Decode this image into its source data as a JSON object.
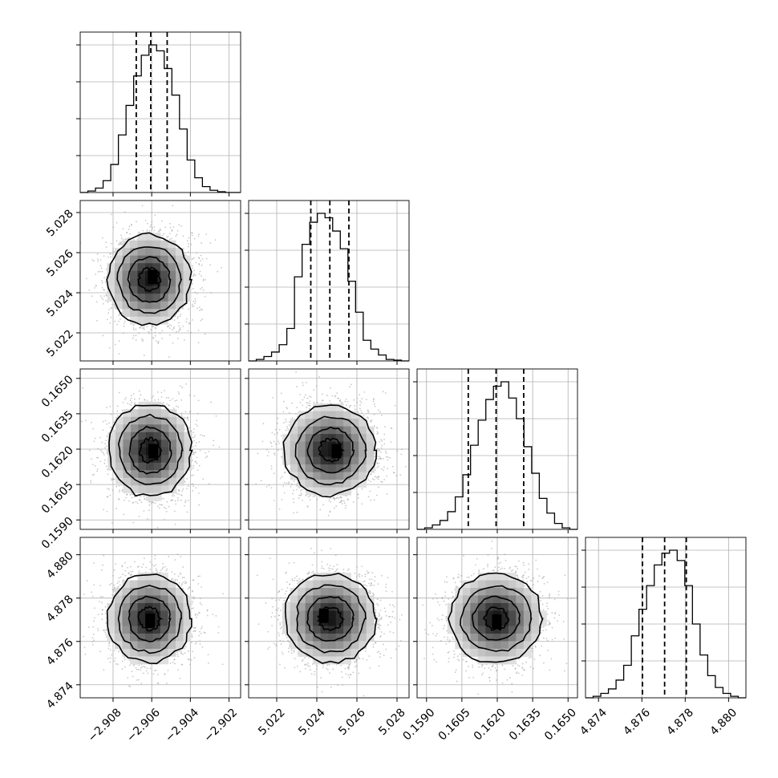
{
  "chart_data": {
    "type": "corner",
    "title": "",
    "parameters": [
      {
        "xticks": [
          -2.908,
          -2.906,
          -2.904,
          -2.902
        ],
        "xtick_labels": [
          "−2.908",
          "−2.906",
          "−2.904",
          "−2.902"
        ],
        "range": [
          -2.9097,
          -2.9014
        ],
        "yticks": [],
        "ytick_labels": []
      },
      {
        "xticks": [
          5.022,
          5.024,
          5.026,
          5.028
        ],
        "xtick_labels": [
          "5.022",
          "5.024",
          "5.026",
          "5.028"
        ],
        "range": [
          5.0206,
          5.0286
        ],
        "yticks": [
          5.022,
          5.024,
          5.026,
          5.028
        ],
        "ytick_labels": [
          "5.022",
          "5.024",
          "5.026",
          "5.028"
        ]
      },
      {
        "xticks": [
          0.159,
          0.1605,
          0.162,
          0.1635,
          0.165
        ],
        "xtick_labels": [
          "0.1590",
          "0.1605",
          "0.1620",
          "0.1635",
          "0.1650"
        ],
        "range": [
          0.1586,
          0.1654
        ],
        "yticks": [
          0.159,
          0.1605,
          0.162,
          0.1635,
          0.165
        ],
        "ytick_labels": [
          "0.1590",
          "0.1605",
          "0.1620",
          "0.1635",
          "0.1650"
        ]
      },
      {
        "xticks": [
          4.874,
          4.876,
          4.878,
          4.88
        ],
        "xtick_labels": [
          "4.874",
          "4.876",
          "4.878",
          "4.880"
        ],
        "range": [
          4.8734,
          4.8808
        ],
        "yticks": [
          4.874,
          4.876,
          4.878,
          4.88
        ],
        "ytick_labels": [
          "4.874",
          "4.876",
          "4.878",
          "4.880"
        ]
      }
    ],
    "marginals": [
      {
        "quantiles": [
          -2.9068,
          -2.90605,
          -2.9052
        ],
        "hist_max": 1.0,
        "counts": [
          0,
          0.01,
          0.03,
          0.08,
          0.19,
          0.39,
          0.59,
          0.79,
          0.93,
          1.0,
          0.96,
          0.84,
          0.66,
          0.43,
          0.22,
          0.1,
          0.04,
          0.015,
          0.005,
          0,
          0
        ]
      },
      {
        "quantiles": [
          5.0237,
          5.02465,
          5.0256
        ],
        "hist_max": 1.0,
        "counts": [
          0,
          0.01,
          0.03,
          0.06,
          0.11,
          0.22,
          0.57,
          0.79,
          0.94,
          1.0,
          0.97,
          0.88,
          0.76,
          0.54,
          0.33,
          0.14,
          0.08,
          0.04,
          0.01,
          0.005,
          0
        ]
      },
      {
        "quantiles": [
          0.16077,
          0.16195,
          0.16312
        ],
        "hist_max": 1.0,
        "counts": [
          0,
          0.01,
          0.03,
          0.06,
          0.12,
          0.22,
          0.37,
          0.57,
          0.74,
          0.88,
          0.97,
          1.0,
          0.89,
          0.75,
          0.56,
          0.38,
          0.21,
          0.11,
          0.04,
          0.01,
          0
        ]
      },
      {
        "quantiles": [
          4.87603,
          4.87705,
          4.87805
        ],
        "hist_max": 1.0,
        "counts": [
          0,
          0.01,
          0.03,
          0.06,
          0.12,
          0.22,
          0.42,
          0.6,
          0.76,
          0.9,
          0.98,
          1.0,
          0.93,
          0.76,
          0.5,
          0.29,
          0.15,
          0.07,
          0.03,
          0.01,
          0
        ]
      }
    ],
    "joint": [
      {
        "x": 0,
        "y": 1,
        "center": [
          -2.90612,
          5.02465
        ],
        "sigma": [
          0.00107,
          0.00112
        ],
        "core": [
          -2.90595,
          5.02475
        ]
      },
      {
        "x": 0,
        "y": 2,
        "center": [
          -2.90608,
          0.16195
        ],
        "sigma": [
          0.00107,
          0.00098
        ],
        "core": [
          -2.90592,
          0.16188
        ]
      },
      {
        "x": 1,
        "y": 2,
        "center": [
          5.02468,
          0.16195
        ],
        "sigma": [
          0.00114,
          0.00095
        ],
        "core": [
          5.02498,
          0.16188
        ]
      },
      {
        "x": 0,
        "y": 3,
        "center": [
          -2.90612,
          4.87705
        ],
        "sigma": [
          0.00107,
          0.00102
        ],
        "core": [
          -2.90608,
          4.87692
        ]
      },
      {
        "x": 1,
        "y": 3,
        "center": [
          5.02468,
          4.87705
        ],
        "sigma": [
          0.00114,
          0.00102
        ],
        "core": [
          5.02435,
          4.87715
        ]
      },
      {
        "x": 2,
        "y": 3,
        "center": [
          0.16195,
          4.87705
        ],
        "sigma": [
          0.00098,
          0.00102
        ],
        "core": [
          0.16198,
          4.87688
        ]
      }
    ],
    "contour_levels_sigma": [
      0.5,
      1.0,
      1.5,
      2.0
    ],
    "grid": true,
    "legend": "none"
  }
}
